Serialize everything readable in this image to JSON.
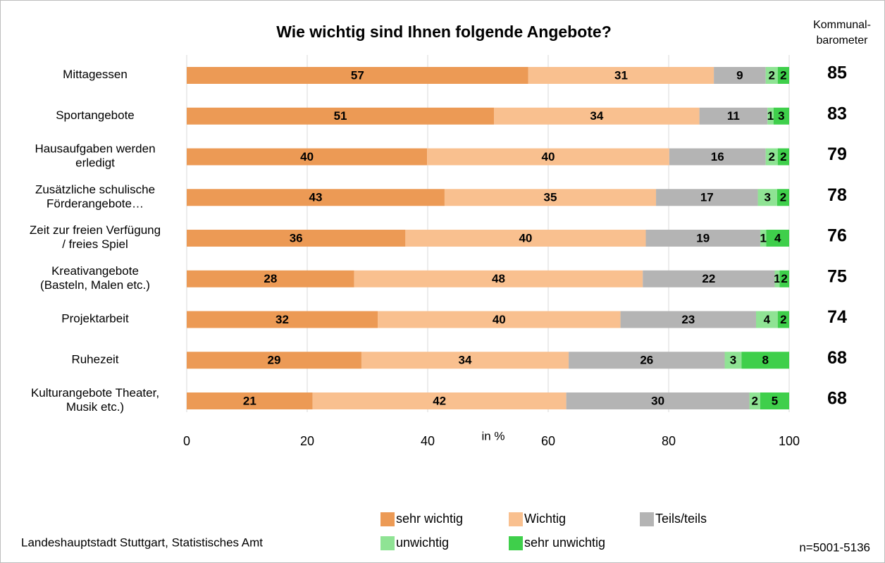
{
  "chart_data": {
    "type": "stacked-hbar",
    "title": "Wie wichtig sind Ihnen folgende Angebote?",
    "x_label": "in %",
    "categories": [
      "Mittagessen",
      "Sportangebote",
      "Hausaufgaben werden\nerledigt",
      "Zusätzliche schulische\nFörderangebote…",
      "Zeit zur freien Verfügung\n/ freies Spiel",
      "Kreativangebote\n(Basteln, Malen etc.)",
      "Projektarbeit",
      "Ruhezeit",
      "Kulturangebote Theater,\nMusik etc.)"
    ],
    "series": [
      {
        "name": "sehr wichtig",
        "color": "#ec9a55",
        "values": [
          56.7,
          51.0,
          39.9,
          42.8,
          36.3,
          27.8,
          31.7,
          29.0,
          20.9
        ],
        "value_labels": [
          "57",
          "51",
          "40",
          "43",
          "36",
          "28",
          "32",
          "29",
          "21"
        ]
      },
      {
        "name": "Wichtig",
        "color": "#f9c08f",
        "values": [
          30.8,
          34.1,
          40.2,
          35.1,
          39.9,
          47.9,
          40.3,
          34.4,
          42.1
        ],
        "value_labels": [
          "31",
          "34",
          "40",
          "35",
          "40",
          "48",
          "40",
          "34",
          "42"
        ]
      },
      {
        "name": "Teils/teils",
        "color": "#b4b4b4",
        "values": [
          8.6,
          11.3,
          16.0,
          16.9,
          19.0,
          21.9,
          22.5,
          25.9,
          30.4
        ],
        "value_labels": [
          "9",
          "11",
          "16",
          "17",
          "19",
          "22",
          "23",
          "26",
          "30"
        ]
      },
      {
        "name": "unwichtig",
        "color": "#8fe394",
        "values": [
          2.0,
          1.0,
          2.0,
          3.2,
          1.0,
          0.8,
          3.6,
          2.8,
          1.8
        ],
        "value_labels": [
          "2",
          "1",
          "2",
          "3",
          "1",
          "1",
          "4",
          "3",
          "2"
        ]
      },
      {
        "name": "sehr unwichtig",
        "color": "#3fcf4b",
        "values": [
          1.9,
          2.6,
          1.9,
          2.0,
          3.8,
          1.6,
          1.9,
          7.9,
          4.8
        ],
        "value_labels": [
          "2",
          "3",
          "2",
          "2",
          "4",
          "2",
          "2",
          "8",
          "5"
        ]
      }
    ],
    "xlim": [
      0,
      100
    ],
    "xticks": [
      0,
      20,
      40,
      60,
      80,
      100
    ],
    "grid": true,
    "kommunal_header": [
      "Kommunal-",
      "barometer"
    ],
    "kommunal_values": [
      85,
      83,
      79,
      78,
      76,
      75,
      74,
      68,
      68
    ],
    "source": "Landeshauptstadt Stuttgart, Statistisches Amt",
    "note": "n=5001-5136"
  }
}
